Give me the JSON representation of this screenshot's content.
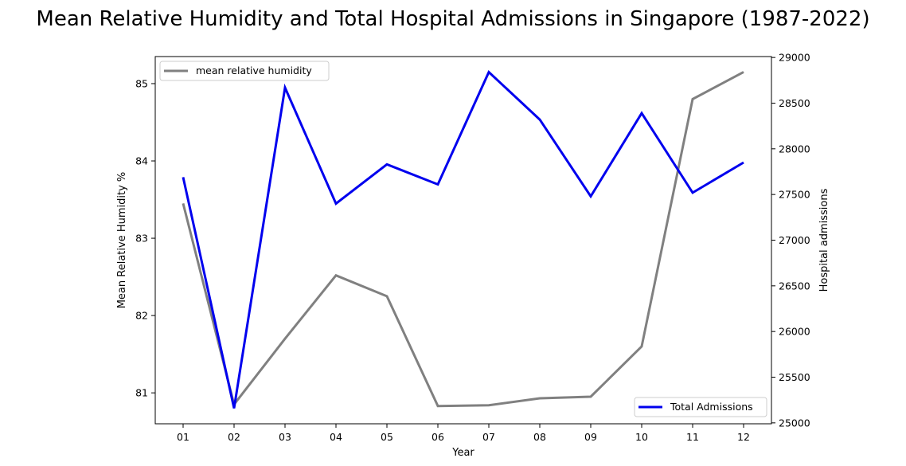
{
  "chart_data": {
    "type": "line",
    "title": "Mean Relative Humidity and Total Hospital Admissions in Singapore (1987-2022)",
    "xlabel": "Year",
    "ylabel_left": "Mean Relative Humidity %",
    "ylabel_right": "Hospital admissions",
    "categories": [
      "01",
      "02",
      "03",
      "04",
      "05",
      "06",
      "07",
      "08",
      "09",
      "10",
      "11",
      "12"
    ],
    "yticks_left": [
      81,
      82,
      83,
      84,
      85
    ],
    "yticks_right": [
      25000,
      25500,
      26000,
      26500,
      27000,
      27500,
      28000,
      28500,
      29000
    ],
    "ylim_left": [
      80.6,
      85.35
    ],
    "ylim_right": [
      24990,
      29010
    ],
    "grid": false,
    "series": [
      {
        "name": "mean relative humidity",
        "axis": "left",
        "color": "#808080",
        "legend_position": "upper-left",
        "values": [
          83.45,
          80.85,
          81.7,
          82.52,
          82.25,
          80.83,
          80.84,
          80.93,
          80.95,
          81.6,
          84.8,
          85.15
        ]
      },
      {
        "name": "Total Admissions",
        "axis": "right",
        "color": "#0000ee",
        "legend_position": "lower-right",
        "values": [
          27690,
          25160,
          28670,
          27400,
          27830,
          27610,
          28840,
          28320,
          27480,
          28390,
          27520,
          27850
        ]
      }
    ]
  }
}
